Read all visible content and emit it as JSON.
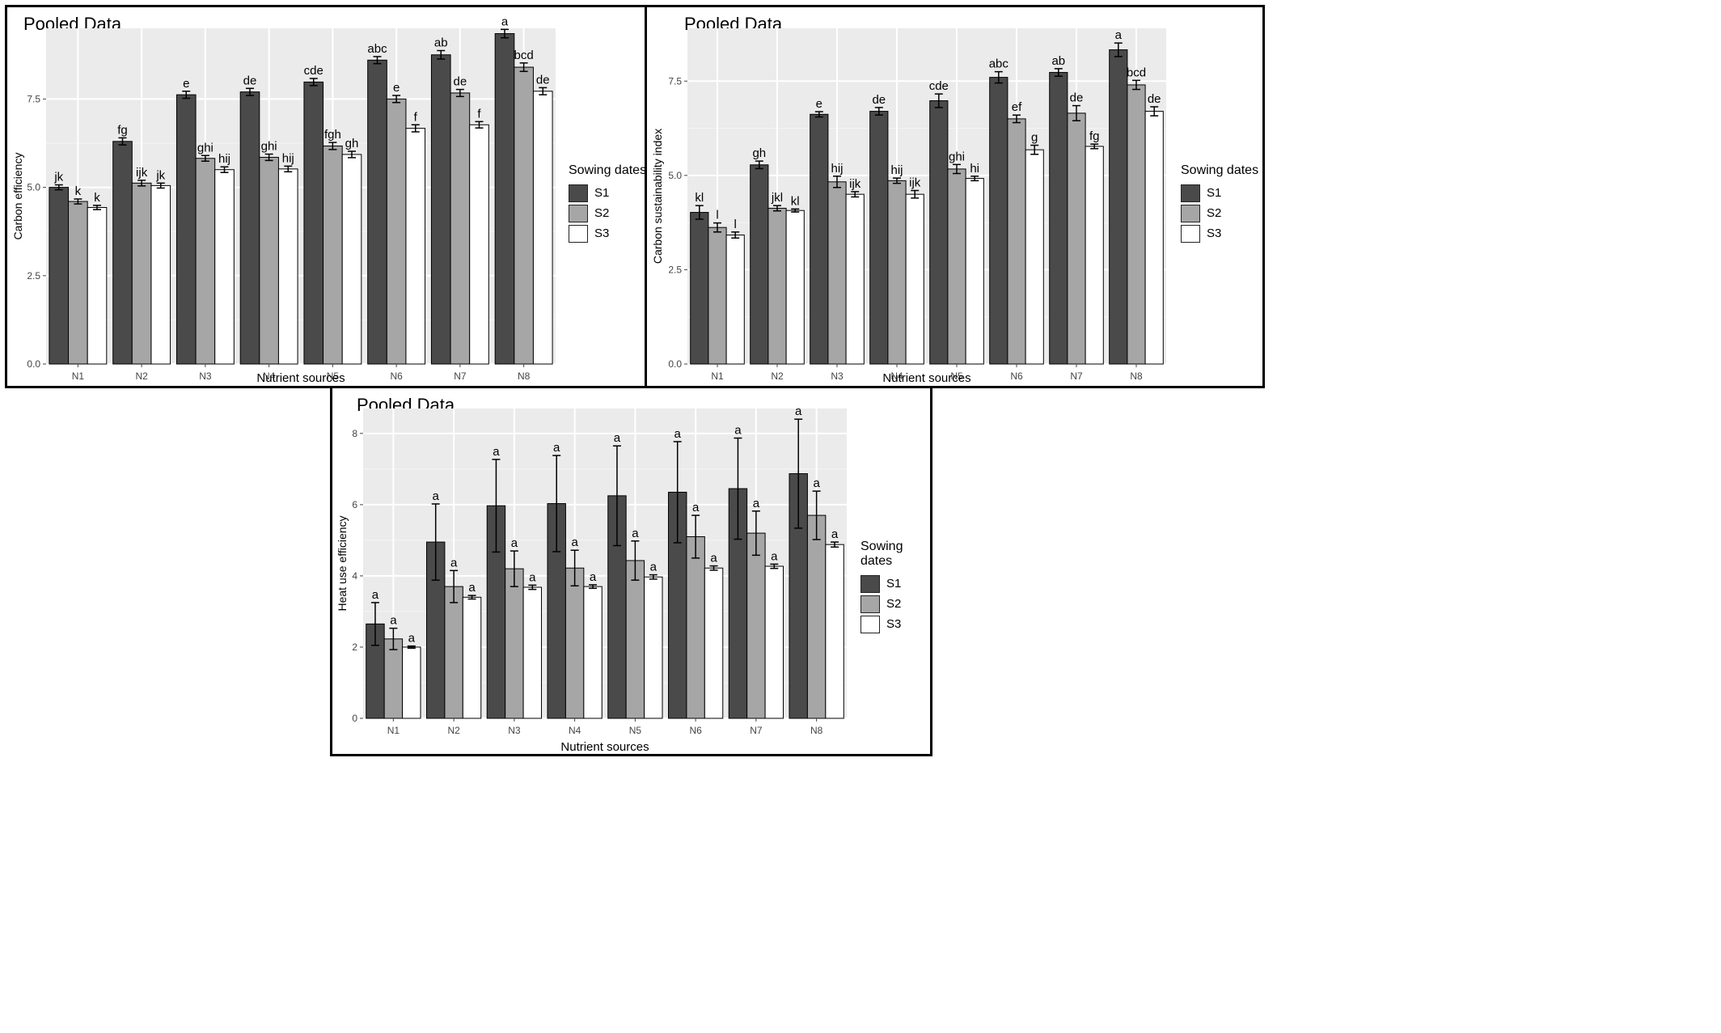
{
  "chart_data": [
    {
      "type": "bar",
      "title": "Pooled Data",
      "xlabel": "Nutrient sources",
      "ylabel": "Carbon efficiency",
      "categories": [
        "N1",
        "N2",
        "N3",
        "N4",
        "N5",
        "N6",
        "N7",
        "N8"
      ],
      "ylim": [
        0,
        9.5
      ],
      "yticks": [
        0,
        2.5,
        5,
        7.5
      ],
      "ytick_labels": [
        "0.0",
        "2.5",
        "5.0",
        "7.5"
      ],
      "legend_title": "Sowing dates",
      "legend_position": "right",
      "grid": true,
      "series": [
        {
          "name": "S1",
          "color": "#4a4a4a",
          "values": [
            5.0,
            6.3,
            7.62,
            7.7,
            7.98,
            8.6,
            8.75,
            9.35
          ],
          "errors": [
            0.07,
            0.1,
            0.1,
            0.1,
            0.1,
            0.1,
            0.12,
            0.12
          ],
          "letters": [
            "jk",
            "fg",
            "e",
            "de",
            "cde",
            "abc",
            "ab",
            "a"
          ]
        },
        {
          "name": "S2",
          "color": "#a6a6a6",
          "values": [
            4.6,
            5.12,
            5.82,
            5.85,
            6.17,
            7.5,
            7.67,
            8.4
          ],
          "errors": [
            0.07,
            0.08,
            0.08,
            0.09,
            0.1,
            0.1,
            0.1,
            0.12
          ],
          "letters": [
            "k",
            "ijk",
            "ghi",
            "ghi",
            "fgh",
            "e",
            "de",
            "bcd"
          ]
        },
        {
          "name": "S3",
          "color": "#ffffff",
          "values": [
            4.43,
            5.05,
            5.5,
            5.52,
            5.93,
            6.67,
            6.77,
            7.72
          ],
          "errors": [
            0.06,
            0.07,
            0.08,
            0.08,
            0.09,
            0.1,
            0.09,
            0.1
          ],
          "letters": [
            "k",
            "jk",
            "hij",
            "hij",
            "gh",
            "f",
            "f",
            "de"
          ]
        }
      ]
    },
    {
      "type": "bar",
      "title": "Pooled Data",
      "xlabel": "Nutrient sources",
      "ylabel": "Carbon sustainability index",
      "categories": [
        "N1",
        "N2",
        "N3",
        "N4",
        "N5",
        "N6",
        "N7",
        "N8"
      ],
      "ylim": [
        0,
        8.9
      ],
      "yticks": [
        0,
        2.5,
        5,
        7.5
      ],
      "ytick_labels": [
        "0.0",
        "2.5",
        "5.0",
        "7.5"
      ],
      "legend_title": "Sowing dates",
      "legend_position": "right",
      "grid": true,
      "series": [
        {
          "name": "S1",
          "color": "#4a4a4a",
          "values": [
            4.02,
            5.28,
            6.62,
            6.7,
            6.98,
            7.6,
            7.73,
            8.33
          ],
          "errors": [
            0.18,
            0.1,
            0.07,
            0.1,
            0.18,
            0.15,
            0.1,
            0.18
          ],
          "letters": [
            "kl",
            "gh",
            "e",
            "de",
            "cde",
            "abc",
            "ab",
            "a"
          ]
        },
        {
          "name": "S2",
          "color": "#a6a6a6",
          "values": [
            3.62,
            4.13,
            4.83,
            4.86,
            5.17,
            6.5,
            6.65,
            7.4
          ],
          "errors": [
            0.12,
            0.07,
            0.15,
            0.07,
            0.12,
            0.1,
            0.2,
            0.12
          ],
          "letters": [
            "l",
            "jkl",
            "hij",
            "hij",
            "ghi",
            "ef",
            "de",
            "bcd"
          ]
        },
        {
          "name": "S3",
          "color": "#ffffff",
          "values": [
            3.42,
            4.07,
            4.5,
            4.5,
            4.92,
            5.68,
            5.77,
            6.7
          ],
          "errors": [
            0.08,
            0.04,
            0.07,
            0.1,
            0.06,
            0.12,
            0.06,
            0.12
          ],
          "letters": [
            "l",
            "kl",
            "ijk",
            "ijk",
            "hi",
            "g",
            "fg",
            "de"
          ]
        }
      ]
    },
    {
      "type": "bar",
      "title": "Pooled Data",
      "xlabel": "Nutrient sources",
      "ylabel": "Heat use efficiency",
      "categories": [
        "N1",
        "N2",
        "N3",
        "N4",
        "N5",
        "N6",
        "N7",
        "N8"
      ],
      "ylim": [
        0,
        8.7
      ],
      "yticks": [
        0,
        2,
        4,
        6,
        8
      ],
      "ytick_labels": [
        "0",
        "2",
        "4",
        "6",
        "8"
      ],
      "legend_title": "Sowing dates",
      "legend_position": "right",
      "grid": true,
      "series": [
        {
          "name": "S1",
          "color": "#4a4a4a",
          "values": [
            2.65,
            4.95,
            5.97,
            6.03,
            6.25,
            6.35,
            6.45,
            6.87
          ],
          "errors": [
            0.6,
            1.07,
            1.3,
            1.35,
            1.4,
            1.42,
            1.42,
            1.53
          ],
          "letters": [
            "a",
            "a",
            "a",
            "a",
            "a",
            "a",
            "a",
            "a"
          ]
        },
        {
          "name": "S2",
          "color": "#a6a6a6",
          "values": [
            2.23,
            3.7,
            4.2,
            4.22,
            4.43,
            5.1,
            5.2,
            5.7
          ],
          "errors": [
            0.3,
            0.45,
            0.5,
            0.5,
            0.55,
            0.6,
            0.62,
            0.68
          ],
          "letters": [
            "a",
            "a",
            "a",
            "a",
            "a",
            "a",
            "a",
            "a"
          ]
        },
        {
          "name": "S3",
          "color": "#ffffff",
          "values": [
            2.0,
            3.4,
            3.68,
            3.7,
            3.97,
            4.22,
            4.27,
            4.88
          ],
          "errors": [
            0.03,
            0.05,
            0.06,
            0.05,
            0.06,
            0.06,
            0.06,
            0.07
          ],
          "letters": [
            "a",
            "a",
            "a",
            "a",
            "a",
            "a",
            "a",
            "a"
          ]
        }
      ]
    }
  ]
}
